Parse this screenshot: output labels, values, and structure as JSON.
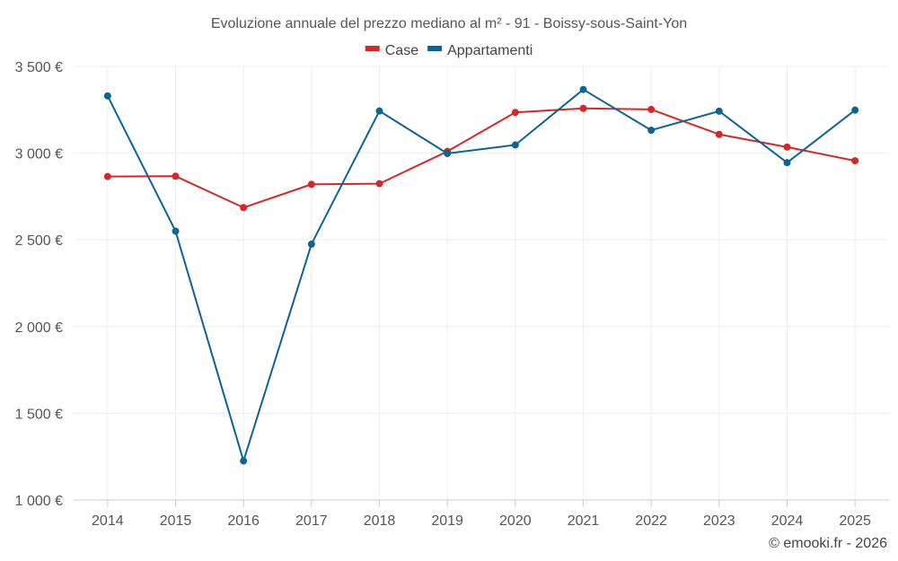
{
  "chart_data": {
    "type": "line",
    "title": "Evoluzione annuale del prezzo mediano al m² - 91 - Boissy-sous-Saint-Yon",
    "xlabel": "",
    "ylabel": "",
    "categories": [
      "2014",
      "2015",
      "2016",
      "2017",
      "2018",
      "2019",
      "2020",
      "2021",
      "2022",
      "2023",
      "2024",
      "2025"
    ],
    "ylim": [
      1000,
      3500
    ],
    "yticks": [
      1000,
      1500,
      2000,
      2500,
      3000,
      3500
    ],
    "ytick_labels": [
      "1 000 €",
      "1 500 €",
      "2 000 €",
      "2 500 €",
      "3 000 €",
      "3 500 €"
    ],
    "grid": true,
    "legend_position": "top-center",
    "series": [
      {
        "name": "Case",
        "color": "#d62728",
        "values": [
          2865,
          2867,
          2686,
          2820,
          2824,
          3010,
          3235,
          3258,
          3252,
          3108,
          3035,
          2956
        ]
      },
      {
        "name": "Appartamenti",
        "color": "#0b6494",
        "values": [
          3330,
          2550,
          1225,
          2475,
          3243,
          2998,
          3047,
          3367,
          3132,
          3242,
          2945,
          3248
        ]
      }
    ]
  },
  "credit": "© emooki.fr - 2026"
}
